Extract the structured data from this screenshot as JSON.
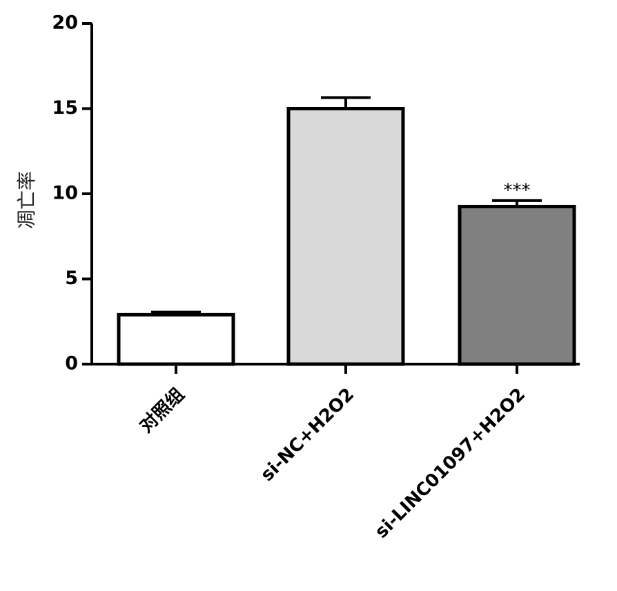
{
  "chart_data": {
    "type": "bar",
    "y_label": "凋亡率",
    "categories": [
      "对照组",
      "si-NC+H2O2",
      "si-LINC01097+H2O2"
    ],
    "values": [
      2.9,
      15.0,
      9.25
    ],
    "errors": [
      0.15,
      0.65,
      0.35
    ],
    "colors": [
      "#ffffff",
      "#d9d9d9",
      "#808080"
    ],
    "annotation": "***",
    "annotation_category": 2,
    "ylim": [
      0,
      20
    ],
    "yticks": [
      0,
      5,
      10,
      15,
      20
    ],
    "grid": false
  }
}
